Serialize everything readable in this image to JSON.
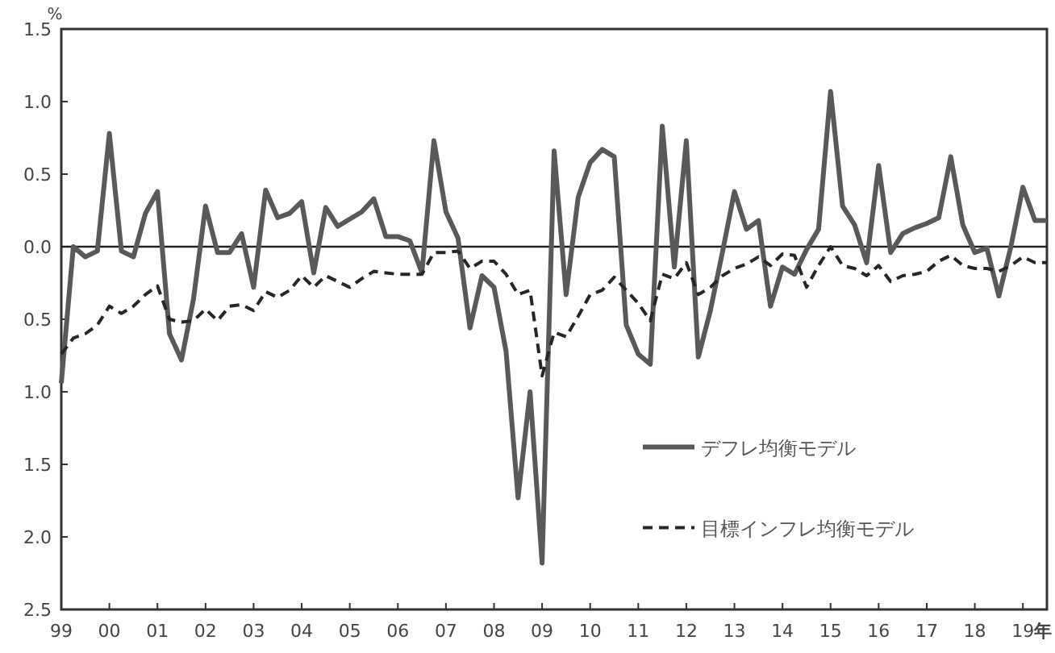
{
  "chart_data": {
    "type": "line",
    "ylabel": "%",
    "xlim": [
      1999,
      2019.5
    ],
    "ylim": [
      -2.5,
      1.5
    ],
    "xticks": [
      {
        "value": 1999,
        "label": "99"
      },
      {
        "value": 2000,
        "label": "00"
      },
      {
        "value": 2001,
        "label": "01"
      },
      {
        "value": 2002,
        "label": "02"
      },
      {
        "value": 2003,
        "label": "03"
      },
      {
        "value": 2004,
        "label": "04"
      },
      {
        "value": 2005,
        "label": "05"
      },
      {
        "value": 2006,
        "label": "06"
      },
      {
        "value": 2007,
        "label": "07"
      },
      {
        "value": 2008,
        "label": "08"
      },
      {
        "value": 2009,
        "label": "09"
      },
      {
        "value": 2010,
        "label": "10"
      },
      {
        "value": 2011,
        "label": "11"
      },
      {
        "value": 2012,
        "label": "12"
      },
      {
        "value": 2013,
        "label": "13"
      },
      {
        "value": 2014,
        "label": "14"
      },
      {
        "value": 2015,
        "label": "15"
      },
      {
        "value": 2016,
        "label": "16"
      },
      {
        "value": 2017,
        "label": "17"
      },
      {
        "value": 2018,
        "label": "18"
      },
      {
        "value": 2019,
        "label": "19"
      }
    ],
    "xlabel": "年",
    "yticks": [
      {
        "value": 1.5,
        "label": "1.5"
      },
      {
        "value": 1.0,
        "label": "1.0"
      },
      {
        "value": 0.5,
        "label": "0.5"
      },
      {
        "value": 0.0,
        "label": "0.0"
      },
      {
        "value": -0.5,
        "label": "0.5"
      },
      {
        "value": -1.0,
        "label": "1.0"
      },
      {
        "value": -1.5,
        "label": "1.5"
      },
      {
        "value": -2.0,
        "label": "2.0"
      },
      {
        "value": -2.5,
        "label": "2.5"
      }
    ],
    "x": [
      1999,
      1999.25,
      1999.5,
      1999.75,
      2000,
      2000.25,
      2000.5,
      2000.75,
      2001,
      2001.25,
      2001.5,
      2001.75,
      2002,
      2002.25,
      2002.5,
      2002.75,
      2003,
      2003.25,
      2003.5,
      2003.75,
      2004,
      2004.25,
      2004.5,
      2004.75,
      2005,
      2005.25,
      2005.5,
      2005.75,
      2006,
      2006.25,
      2006.5,
      2006.75,
      2007,
      2007.25,
      2007.5,
      2007.75,
      2008,
      2008.25,
      2008.5,
      2008.75,
      2009,
      2009.25,
      2009.5,
      2009.75,
      2010,
      2010.25,
      2010.5,
      2010.75,
      2011,
      2011.25,
      2011.5,
      2011.75,
      2012,
      2012.25,
      2012.5,
      2012.75,
      2013,
      2013.25,
      2013.5,
      2013.75,
      2014,
      2014.25,
      2014.5,
      2014.75,
      2015,
      2015.25,
      2015.5,
      2015.75,
      2016,
      2016.25,
      2016.5,
      2016.75,
      2017,
      2017.25,
      2017.5,
      2017.75,
      2018,
      2018.25,
      2018.5,
      2018.75,
      2019,
      2019.25,
      2019.5
    ],
    "series": [
      {
        "name": "デフレ均衡モデル",
        "color": "#595959",
        "line_style": "solid",
        "values": [
          -0.94,
          0.0,
          -0.07,
          -0.03,
          0.78,
          -0.03,
          -0.07,
          0.23,
          0.38,
          -0.6,
          -0.78,
          -0.36,
          0.28,
          -0.04,
          -0.04,
          0.09,
          -0.28,
          0.39,
          0.2,
          0.23,
          0.31,
          -0.18,
          0.27,
          0.14,
          0.19,
          0.24,
          0.33,
          0.07,
          0.07,
          0.04,
          -0.18,
          0.73,
          0.24,
          0.06,
          -0.56,
          -0.2,
          -0.28,
          -0.72,
          -1.73,
          -1.0,
          -2.18,
          0.66,
          -0.33,
          0.34,
          0.58,
          0.67,
          0.62,
          -0.54,
          -0.74,
          -0.81,
          0.83,
          -0.14,
          0.73,
          -0.76,
          -0.44,
          -0.04,
          0.38,
          0.12,
          0.18,
          -0.41,
          -0.14,
          -0.19,
          -0.02,
          0.12,
          1.07,
          0.28,
          0.15,
          -0.11,
          0.56,
          -0.04,
          0.09,
          0.13,
          0.16,
          0.2,
          0.62,
          0.15,
          -0.04,
          -0.01,
          -0.34,
          0.0,
          0.41,
          0.18,
          0.18
        ]
      },
      {
        "name": "目標インフレ均衡モデル",
        "color": "#262626",
        "line_style": "dashed",
        "values": [
          -0.74,
          -0.63,
          -0.6,
          -0.54,
          -0.41,
          -0.46,
          -0.41,
          -0.33,
          -0.27,
          -0.5,
          -0.52,
          -0.51,
          -0.43,
          -0.51,
          -0.41,
          -0.4,
          -0.44,
          -0.31,
          -0.35,
          -0.3,
          -0.2,
          -0.28,
          -0.2,
          -0.24,
          -0.28,
          -0.22,
          -0.17,
          -0.18,
          -0.19,
          -0.19,
          -0.19,
          -0.04,
          -0.04,
          -0.03,
          -0.15,
          -0.1,
          -0.1,
          -0.19,
          -0.33,
          -0.3,
          -0.89,
          -0.59,
          -0.62,
          -0.48,
          -0.33,
          -0.3,
          -0.21,
          -0.3,
          -0.39,
          -0.51,
          -0.19,
          -0.22,
          -0.11,
          -0.33,
          -0.28,
          -0.2,
          -0.15,
          -0.12,
          -0.07,
          -0.13,
          -0.05,
          -0.06,
          -0.28,
          -0.13,
          0.0,
          -0.13,
          -0.15,
          -0.2,
          -0.13,
          -0.24,
          -0.2,
          -0.19,
          -0.17,
          -0.1,
          -0.06,
          -0.13,
          -0.15,
          -0.15,
          -0.17,
          -0.13,
          -0.07,
          -0.11,
          -0.11
        ]
      }
    ],
    "ref_lines": [
      {
        "axis": "y",
        "value": 0
      }
    ],
    "legend": "bottom right"
  }
}
